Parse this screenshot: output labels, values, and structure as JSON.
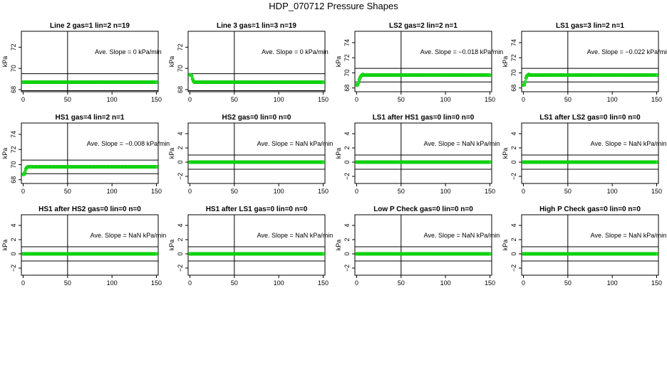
{
  "title": "HDP_070712  Pressure Shapes",
  "colors": {
    "points": "#00cc00",
    "point_fill": "#33dd33",
    "lines": "#000000"
  },
  "chart_data": [
    {
      "type": "scatter",
      "title": "Line 2 gas=1 lin=2 n=19",
      "ylabel": "kPa",
      "xlim": [
        -2,
        152
      ],
      "ylim": [
        67.8,
        73.5
      ],
      "xticks": [
        0,
        50,
        100,
        150
      ],
      "yticks": [
        68,
        70,
        72
      ],
      "hlines": [
        67.9,
        69.5
      ],
      "vline": 50,
      "annotation": "Ave. Slope =  0  kPa/min",
      "series": {
        "x_start": 0,
        "x_end": 150,
        "step": 1,
        "base": 68.7,
        "initial": []
      }
    },
    {
      "type": "scatter",
      "title": "Line 3 gas=1 lin=3 n=19",
      "ylabel": "kPa",
      "xlim": [
        -2,
        152
      ],
      "ylim": [
        67.8,
        73.5
      ],
      "xticks": [
        0,
        50,
        100,
        150
      ],
      "yticks": [
        68,
        70,
        72
      ],
      "hlines": [
        67.9,
        69.5
      ],
      "vline": 50,
      "annotation": "Ave. Slope =  0  kPa/min",
      "series": {
        "x_start": 0,
        "x_end": 150,
        "step": 1,
        "base": 68.7,
        "initial": [
          69.4,
          69.4,
          69.3,
          69.0,
          68.8
        ]
      }
    },
    {
      "type": "scatter",
      "title": "LS2 gas=2 lin=2 n=1",
      "ylabel": "kPa",
      "xlim": [
        -2,
        152
      ],
      "ylim": [
        67.5,
        75.5
      ],
      "xticks": [
        0,
        50,
        100,
        150
      ],
      "yticks": [
        68,
        70,
        72,
        74
      ],
      "hlines": [
        68.8,
        70.6
      ],
      "vline": 50,
      "annotation": "Ave. Slope =  −0.018  kPa/min",
      "series": {
        "x_start": 0,
        "x_end": 150,
        "step": 1,
        "base": 69.7,
        "initial": [
          68.4,
          68.4,
          68.7,
          69.1,
          69.4,
          69.6,
          69.7,
          69.8
        ]
      }
    },
    {
      "type": "scatter",
      "title": "LS1 gas=3 lin=2 n=1",
      "ylabel": "kPa",
      "xlim": [
        -2,
        152
      ],
      "ylim": [
        67.5,
        75.5
      ],
      "xticks": [
        0,
        50,
        100,
        150
      ],
      "yticks": [
        68,
        70,
        72,
        74
      ],
      "hlines": [
        68.8,
        70.6
      ],
      "vline": 50,
      "annotation": "Ave. Slope =  −0.022  kPa/min",
      "series": {
        "x_start": 0,
        "x_end": 150,
        "step": 1,
        "base": 69.7,
        "initial": [
          68.4,
          68.4,
          68.8,
          69.3,
          69.6,
          69.7,
          69.8
        ]
      }
    },
    {
      "type": "scatter",
      "title": "HS1 gas=4 lin=2 n=1",
      "ylabel": "kPa",
      "xlim": [
        -2,
        152
      ],
      "ylim": [
        67.5,
        75.5
      ],
      "xticks": [
        0,
        50,
        100,
        150
      ],
      "yticks": [
        68,
        70,
        72,
        74
      ],
      "hlines": [
        68.8,
        70.6
      ],
      "vline": 50,
      "annotation": "Ave. Slope =  −0.008  kPa/min",
      "series": {
        "x_start": 0,
        "x_end": 150,
        "step": 1,
        "base": 69.7,
        "initial": [
          68.7,
          68.7,
          69.0,
          69.4,
          69.6,
          69.7
        ]
      }
    },
    {
      "type": "scatter",
      "title": "HS2 gas=0 lin=0 n=0",
      "ylabel": "kPa",
      "xlim": [
        -2,
        152
      ],
      "ylim": [
        -3,
        5.5
      ],
      "xticks": [
        0,
        50,
        100,
        150
      ],
      "yticks": [
        -2,
        0,
        2,
        4
      ],
      "hlines": [
        -1,
        1
      ],
      "vline": 50,
      "annotation": "Ave. Slope =  NaN  kPa/min",
      "series": {
        "x_start": 0,
        "x_end": 150,
        "step": 1,
        "base": 0,
        "initial": []
      }
    },
    {
      "type": "scatter",
      "title": "LS1 after HS1 gas=0 lin=0 n=0",
      "ylabel": "kPa",
      "xlim": [
        -2,
        152
      ],
      "ylim": [
        -3,
        5.5
      ],
      "xticks": [
        0,
        50,
        100,
        150
      ],
      "yticks": [
        -2,
        0,
        2,
        4
      ],
      "hlines": [
        -1,
        1
      ],
      "vline": 50,
      "annotation": "Ave. Slope =  NaN  kPa/min",
      "series": {
        "x_start": 0,
        "x_end": 150,
        "step": 1,
        "base": 0,
        "initial": []
      }
    },
    {
      "type": "scatter",
      "title": "LS1 after LS2 gas=0 lin=0 n=0",
      "ylabel": "kPa",
      "xlim": [
        -2,
        152
      ],
      "ylim": [
        -3,
        5.5
      ],
      "xticks": [
        0,
        50,
        100,
        150
      ],
      "yticks": [
        -2,
        0,
        2,
        4
      ],
      "hlines": [
        -1,
        1
      ],
      "vline": 50,
      "annotation": "Ave. Slope =  NaN  kPa/min",
      "series": {
        "x_start": 0,
        "x_end": 150,
        "step": 1,
        "base": 0,
        "initial": []
      }
    },
    {
      "type": "scatter",
      "title": "HS1 after HS2 gas=0 lin=0 n=0",
      "ylabel": "kPa",
      "xlim": [
        -2,
        152
      ],
      "ylim": [
        -3,
        5.5
      ],
      "xticks": [
        0,
        50,
        100,
        150
      ],
      "yticks": [
        -2,
        0,
        2,
        4
      ],
      "hlines": [
        -1,
        1
      ],
      "vline": 50,
      "annotation": "Ave. Slope =  NaN  kPa/min",
      "series": {
        "x_start": 0,
        "x_end": 150,
        "step": 1,
        "base": 0,
        "initial": []
      }
    },
    {
      "type": "scatter",
      "title": "HS1 after LS1 gas=0 lin=0 n=0",
      "ylabel": "kPa",
      "xlim": [
        -2,
        152
      ],
      "ylim": [
        -3,
        5.5
      ],
      "xticks": [
        0,
        50,
        100,
        150
      ],
      "yticks": [
        -2,
        0,
        2,
        4
      ],
      "hlines": [
        -1,
        1
      ],
      "vline": 50,
      "annotation": "Ave. Slope =  NaN  kPa/min",
      "series": {
        "x_start": 0,
        "x_end": 150,
        "step": 1,
        "base": 0,
        "initial": []
      }
    },
    {
      "type": "scatter",
      "title": "Low P Check gas=0 lin=0 n=0",
      "ylabel": "kPa",
      "xlim": [
        -2,
        152
      ],
      "ylim": [
        -3,
        5.5
      ],
      "xticks": [
        0,
        50,
        100,
        150
      ],
      "yticks": [
        -2,
        0,
        2,
        4
      ],
      "hlines": [
        -1,
        1
      ],
      "vline": 50,
      "annotation": "Ave. Slope =  NaN  kPa/min",
      "series": {
        "x_start": 0,
        "x_end": 150,
        "step": 1,
        "base": 0,
        "initial": []
      }
    },
    {
      "type": "scatter",
      "title": "High P Check gas=0 lin=0 n=0",
      "ylabel": "kPa",
      "xlim": [
        -2,
        152
      ],
      "ylim": [
        -3,
        5.5
      ],
      "xticks": [
        0,
        50,
        100,
        150
      ],
      "yticks": [
        -2,
        0,
        2,
        4
      ],
      "hlines": [
        -1,
        1
      ],
      "vline": 50,
      "annotation": "Ave. Slope =  NaN  kPa/min",
      "series": {
        "x_start": 0,
        "x_end": 150,
        "step": 1,
        "base": 0,
        "initial": []
      }
    }
  ]
}
